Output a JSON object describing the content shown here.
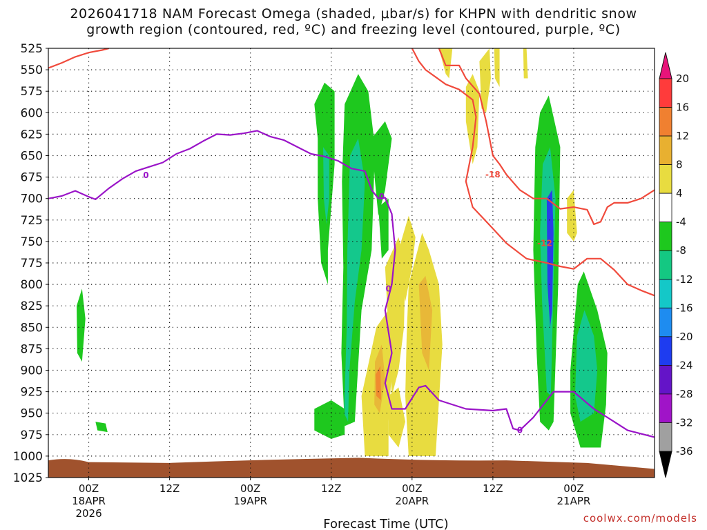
{
  "title_line1": "2026041718 NAM Forecast Omega (shaded, μbar/s) for KHPN with dendritic snow",
  "title_line2": "growth region (contoured, red, ºC) and freezing level (contoured, purple, ºC)",
  "watermark": "coolwx.com/models",
  "chart_data": {
    "type": "heatmap",
    "title": "2026041718 NAM Forecast Omega (shaded, μbar/s) for KHPN with dendritic snow growth region (contoured, red, ºC) and freezing level (contoured, purple, ºC)",
    "xlabel": "Forecast Time (UTC)",
    "ylabel": "",
    "x_range_hours": [
      -6,
      84
    ],
    "y_range_hPa": [
      525,
      1025
    ],
    "y_ticks": [
      525,
      550,
      575,
      600,
      625,
      650,
      675,
      700,
      725,
      750,
      775,
      800,
      825,
      850,
      875,
      900,
      925,
      950,
      975,
      1000,
      1025
    ],
    "x_ticks": [
      {
        "hour": 0,
        "label": "00Z",
        "sub1": "18APR",
        "sub2": "2026"
      },
      {
        "hour": 12,
        "label": "12Z",
        "sub1": "",
        "sub2": ""
      },
      {
        "hour": 24,
        "label": "00Z",
        "sub1": "19APR",
        "sub2": ""
      },
      {
        "hour": 36,
        "label": "12Z",
        "sub1": "",
        "sub2": ""
      },
      {
        "hour": 48,
        "label": "00Z",
        "sub1": "20APR",
        "sub2": ""
      },
      {
        "hour": 60,
        "label": "12Z",
        "sub1": "",
        "sub2": ""
      },
      {
        "hour": 72,
        "label": "00Z",
        "sub1": "21APR",
        "sub2": ""
      }
    ],
    "grid": true,
    "colorbar": {
      "labels": [
        "20",
        "16",
        "12",
        "8",
        "4",
        "-4",
        "-8",
        "-12",
        "-16",
        "-20",
        "-24",
        "-28",
        "-32",
        "-36"
      ],
      "colors": [
        "#ff3b3b",
        "#f08030",
        "#e8b030",
        "#e8dc40",
        "#ffffff",
        "#1ec81e",
        "#14c882",
        "#14c8c8",
        "#1e8cf0",
        "#1e3cf0",
        "#6414c8",
        "#a014c8",
        "#a0a0a0"
      ],
      "top_color": "#e8147a",
      "bottom_color": "#000000"
    },
    "freezing_level_label": "0",
    "freezing_level": [
      [
        -6,
        700
      ],
      [
        -4,
        697
      ],
      [
        -2,
        691
      ],
      [
        0,
        698
      ],
      [
        1,
        701
      ],
      [
        3,
        688
      ],
      [
        5,
        677
      ],
      [
        7,
        668
      ],
      [
        9,
        663
      ],
      [
        11,
        658
      ],
      [
        13,
        648
      ],
      [
        15,
        642
      ],
      [
        17,
        633
      ],
      [
        19,
        625
      ],
      [
        21,
        626
      ],
      [
        23,
        624
      ],
      [
        25,
        621
      ],
      [
        27,
        628
      ],
      [
        29,
        632
      ],
      [
        31,
        640
      ],
      [
        33,
        648
      ],
      [
        35,
        651
      ],
      [
        37,
        656
      ],
      [
        39,
        665
      ],
      [
        41,
        668
      ],
      [
        42,
        690
      ],
      [
        43,
        700
      ],
      [
        44,
        699
      ],
      [
        45,
        718
      ],
      [
        45.5,
        760
      ],
      [
        45,
        800
      ],
      [
        44,
        830
      ],
      [
        45,
        880
      ],
      [
        44,
        915
      ],
      [
        45,
        945
      ],
      [
        47,
        945
      ],
      [
        49,
        920
      ],
      [
        50,
        918
      ],
      [
        52,
        935
      ],
      [
        56,
        945
      ],
      [
        60,
        947
      ],
      [
        62,
        945
      ],
      [
        63,
        968
      ],
      [
        64,
        970
      ],
      [
        66,
        955
      ],
      [
        69,
        925
      ],
      [
        72,
        925
      ],
      [
        75,
        945
      ],
      [
        78,
        960
      ],
      [
        80,
        970
      ],
      [
        84,
        978
      ]
    ],
    "dgz_labels": [
      "-18",
      "-12"
    ],
    "dgz_minus12": [
      [
        -6,
        548
      ],
      [
        -4,
        542
      ],
      [
        -2,
        535
      ],
      [
        0,
        530
      ],
      [
        2,
        527
      ],
      [
        3,
        525
      ]
    ],
    "dgz_minus12_upper": [
      [
        48,
        525
      ],
      [
        49,
        540
      ],
      [
        50,
        550
      ],
      [
        53,
        567
      ],
      [
        55,
        573
      ],
      [
        57,
        585
      ],
      [
        57.5,
        605
      ],
      [
        57,
        640
      ],
      [
        56,
        680
      ],
      [
        57,
        710
      ],
      [
        60,
        735
      ],
      [
        62,
        752
      ],
      [
        65,
        770
      ],
      [
        68,
        775
      ],
      [
        70,
        779
      ],
      [
        72,
        782
      ],
      [
        74,
        770
      ],
      [
        76,
        770
      ],
      [
        78,
        783
      ],
      [
        80,
        800
      ],
      [
        82,
        807
      ],
      [
        84,
        813
      ]
    ],
    "dgz_minus18": [
      [
        52,
        525
      ],
      [
        53,
        545
      ],
      [
        55,
        545
      ],
      [
        56,
        560
      ],
      [
        58,
        578
      ],
      [
        59,
        610
      ],
      [
        60,
        650
      ],
      [
        61,
        660
      ],
      [
        62,
        672
      ],
      [
        64,
        690
      ],
      [
        66,
        700
      ],
      [
        68,
        700
      ],
      [
        70,
        712
      ],
      [
        72,
        710
      ],
      [
        74,
        713
      ],
      [
        75,
        730
      ],
      [
        76,
        727
      ],
      [
        77,
        710
      ],
      [
        78,
        705
      ],
      [
        80,
        705
      ],
      [
        82,
        700
      ],
      [
        84,
        690
      ]
    ],
    "omega_regions": [
      {
        "value": -8,
        "poly": [
          [
            33.5,
            590
          ],
          [
            35,
            565
          ],
          [
            36.5,
            575
          ],
          [
            36.5,
            660
          ],
          [
            35.5,
            760
          ],
          [
            35.5,
            800
          ],
          [
            34.5,
            775
          ],
          [
            34,
            700
          ],
          [
            34,
            630
          ]
        ]
      },
      {
        "value": -12,
        "poly": [
          [
            34.8,
            640
          ],
          [
            35.7,
            650
          ],
          [
            35.7,
            700
          ],
          [
            35.3,
            730
          ],
          [
            34.9,
            700
          ]
        ]
      },
      {
        "value": -8,
        "poly": [
          [
            38,
            590
          ],
          [
            40,
            555
          ],
          [
            41.5,
            575
          ],
          [
            42.5,
            640
          ],
          [
            42,
            760
          ],
          [
            40.5,
            830
          ],
          [
            39.5,
            960
          ],
          [
            38,
            965
          ],
          [
            37.5,
            880
          ],
          [
            37.8,
            780
          ],
          [
            37.6,
            680
          ]
        ]
      },
      {
        "value": -12,
        "poly": [
          [
            38.8,
            650
          ],
          [
            40,
            630
          ],
          [
            41,
            680
          ],
          [
            40.5,
            760
          ],
          [
            39.5,
            820
          ],
          [
            38.7,
            900
          ],
          [
            38.5,
            960
          ],
          [
            37.9,
            950
          ],
          [
            38.3,
            850
          ],
          [
            38.4,
            760
          ]
        ]
      },
      {
        "value": -8,
        "poly": [
          [
            33.5,
            945
          ],
          [
            36,
            935
          ],
          [
            38,
            945
          ],
          [
            38,
            975
          ],
          [
            36,
            980
          ],
          [
            33.5,
            970
          ]
        ]
      },
      {
        "value": -8,
        "poly": [
          [
            42,
            630
          ],
          [
            44,
            610
          ],
          [
            45,
            630
          ],
          [
            44,
            690
          ],
          [
            43,
            720
          ],
          [
            42.5,
            680
          ]
        ]
      },
      {
        "value": -8,
        "poly": [
          [
            43,
            710
          ],
          [
            44.5,
            700
          ],
          [
            44.5,
            760
          ],
          [
            43.5,
            770
          ]
        ]
      },
      {
        "value": -8,
        "poly": [
          [
            66.3,
            640
          ],
          [
            67,
            600
          ],
          [
            68.3,
            580
          ],
          [
            70,
            640
          ],
          [
            69.7,
            800
          ],
          [
            69,
            960
          ],
          [
            68.3,
            970
          ],
          [
            67,
            960
          ],
          [
            66.5,
            880
          ],
          [
            66,
            760
          ]
        ]
      },
      {
        "value": -12,
        "poly": [
          [
            67.4,
            660
          ],
          [
            68.5,
            640
          ],
          [
            69.3,
            700
          ],
          [
            69,
            800
          ],
          [
            68.6,
            930
          ],
          [
            68,
            925
          ],
          [
            67.3,
            820
          ],
          [
            67,
            740
          ]
        ]
      },
      {
        "value": -20,
        "poly": [
          [
            68,
            700
          ],
          [
            68.8,
            690
          ],
          [
            69,
            740
          ],
          [
            68.8,
            830
          ],
          [
            68.5,
            850
          ],
          [
            68.1,
            800
          ]
        ]
      },
      {
        "value": -8,
        "poly": [
          [
            72.6,
            800
          ],
          [
            73.5,
            785
          ],
          [
            75.5,
            830
          ],
          [
            77,
            880
          ],
          [
            76.8,
            940
          ],
          [
            76,
            990
          ],
          [
            73,
            990
          ],
          [
            71.5,
            950
          ],
          [
            71.5,
            900
          ]
        ]
      },
      {
        "value": -12,
        "poly": [
          [
            72.5,
            860
          ],
          [
            73.6,
            830
          ],
          [
            75,
            860
          ],
          [
            75.5,
            900
          ],
          [
            75,
            950
          ],
          [
            73,
            960
          ],
          [
            72.2,
            930
          ]
        ]
      },
      {
        "value": -8,
        "poly": [
          [
            -1.8,
            825
          ],
          [
            -1,
            805
          ],
          [
            -0.5,
            840
          ],
          [
            -1,
            890
          ],
          [
            -1.7,
            880
          ]
        ]
      },
      {
        "value": -8,
        "poly": [
          [
            1,
            960
          ],
          [
            2.5,
            962
          ],
          [
            2.8,
            972
          ],
          [
            1.3,
            970
          ]
        ]
      },
      {
        "value": 4,
        "poly": [
          [
            42.7,
            850
          ],
          [
            44.5,
            830
          ],
          [
            46,
            860
          ],
          [
            45,
            900
          ],
          [
            44.5,
            960
          ],
          [
            44.5,
            1000
          ],
          [
            41,
            1000
          ],
          [
            40.5,
            930
          ]
        ]
      },
      {
        "value": 8,
        "poly": [
          [
            42.5,
            890
          ],
          [
            43.5,
            870
          ],
          [
            44,
            910
          ],
          [
            43.2,
            950
          ],
          [
            42.4,
            940
          ]
        ]
      },
      {
        "value": 12,
        "poly": [
          [
            42.6,
            905
          ],
          [
            43.3,
            895
          ],
          [
            43.4,
            935
          ],
          [
            42.7,
            930
          ]
        ]
      },
      {
        "value": 4,
        "poly": [
          [
            44,
            780
          ],
          [
            46,
            745
          ],
          [
            47,
            780
          ],
          [
            46.8,
            850
          ],
          [
            46,
            900
          ],
          [
            45,
            930
          ]
        ]
      },
      {
        "value": 4,
        "poly": [
          [
            46,
            760
          ],
          [
            47.5,
            720
          ],
          [
            48.5,
            745
          ],
          [
            48,
            780
          ],
          [
            47,
            820
          ]
        ]
      },
      {
        "value": 4,
        "poly": [
          [
            47.5,
            800
          ],
          [
            49.5,
            740
          ],
          [
            50.5,
            760
          ],
          [
            52,
            800
          ],
          [
            52.5,
            870
          ],
          [
            51.5,
            1000
          ],
          [
            47.5,
            1000
          ],
          [
            47,
            930
          ],
          [
            47.2,
            860
          ]
        ]
      },
      {
        "value": 8,
        "poly": [
          [
            49,
            800
          ],
          [
            50,
            790
          ],
          [
            51,
            830
          ],
          [
            50.5,
            900
          ],
          [
            49.5,
            880
          ]
        ]
      },
      {
        "value": 4,
        "poly": [
          [
            44.5,
            930
          ],
          [
            46,
            920
          ],
          [
            47,
            960
          ],
          [
            46,
            990
          ],
          [
            44.5,
            975
          ]
        ]
      },
      {
        "value": 4,
        "poly": [
          [
            52,
            525
          ],
          [
            54,
            525
          ],
          [
            53.5,
            560
          ],
          [
            53,
            555
          ],
          [
            52.5,
            540
          ]
        ]
      },
      {
        "value": 4,
        "poly": [
          [
            56,
            570
          ],
          [
            57,
            555
          ],
          [
            58,
            575
          ],
          [
            57.7,
            640
          ],
          [
            57,
            660
          ],
          [
            56,
            610
          ]
        ]
      },
      {
        "value": 4,
        "poly": [
          [
            58,
            540
          ],
          [
            59.5,
            525
          ],
          [
            59.7,
            560
          ],
          [
            59,
            600
          ],
          [
            58.3,
            595
          ]
        ]
      },
      {
        "value": 4,
        "poly": [
          [
            60.2,
            525
          ],
          [
            61,
            525
          ],
          [
            61,
            570
          ],
          [
            60.3,
            560
          ]
        ]
      },
      {
        "value": 4,
        "poly": [
          [
            64.5,
            525
          ],
          [
            65,
            525
          ],
          [
            65.2,
            560
          ],
          [
            64.6,
            560
          ]
        ]
      },
      {
        "value": 4,
        "poly": [
          [
            71,
            700
          ],
          [
            72,
            690
          ],
          [
            72.5,
            740
          ],
          [
            72,
            750
          ],
          [
            71,
            740
          ]
        ]
      }
    ]
  }
}
